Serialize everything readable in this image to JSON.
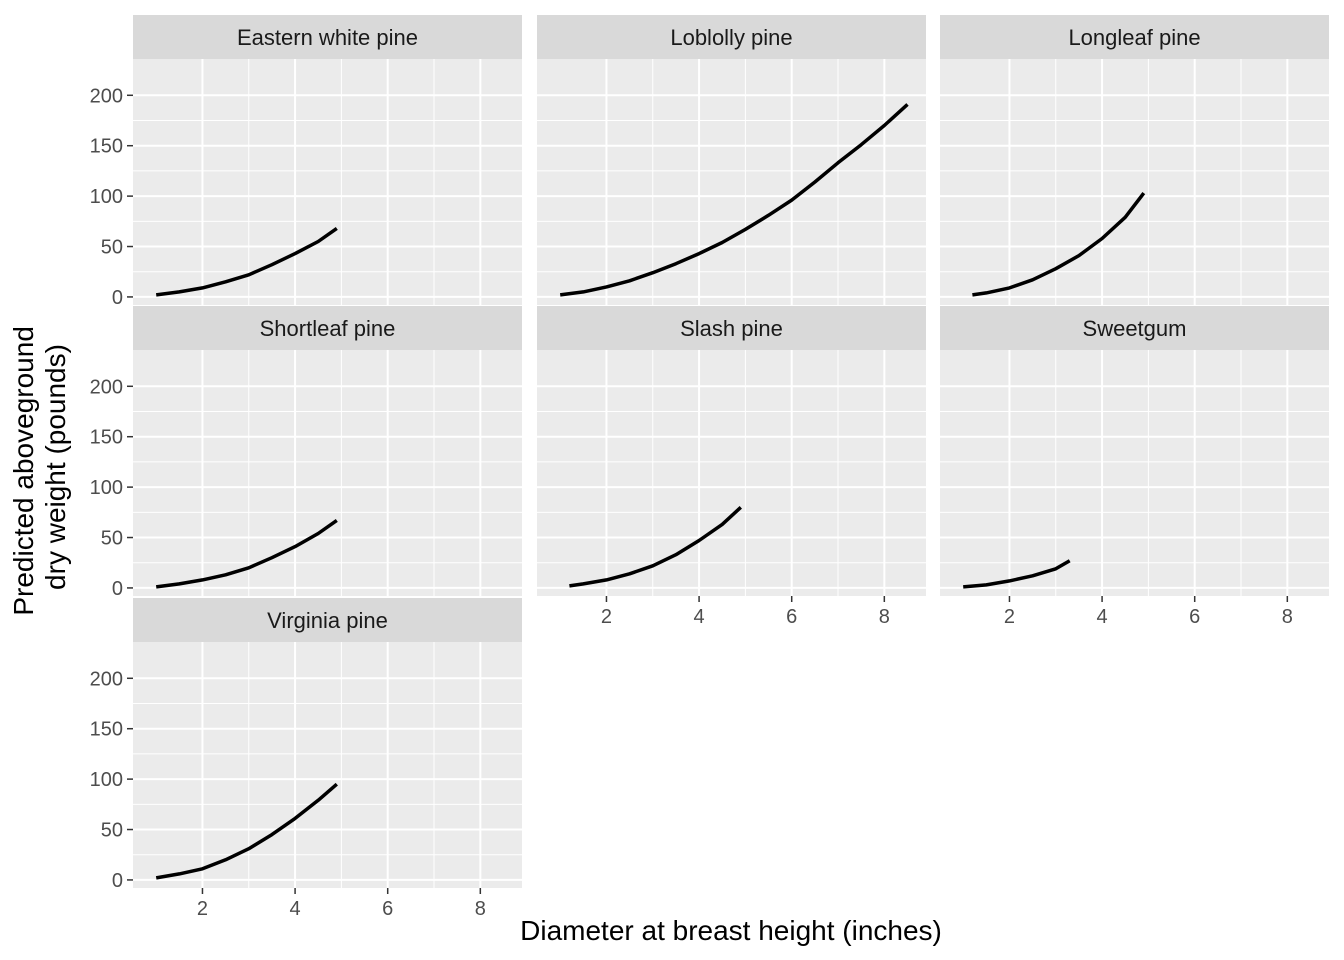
{
  "chart_data": {
    "type": "line",
    "layout": "facet_wrap",
    "xlabel": "Diameter at breast height (inches)",
    "ylabel_lines": [
      "Predicted aboveground",
      "dry weight (pounds)"
    ],
    "xlim": [
      0.5,
      8.9
    ],
    "ylim": [
      -8,
      236
    ],
    "x_ticks": [
      2,
      4,
      6,
      8
    ],
    "y_ticks": [
      0,
      50,
      100,
      150,
      200
    ],
    "grid": true,
    "line_color": "#000000",
    "panel_background": "#ebebeb",
    "strip_background": "#d9d9d9",
    "series": [
      {
        "name": "Eastern white pine",
        "x": [
          1.0,
          1.5,
          2.0,
          2.5,
          3.0,
          3.5,
          4.0,
          4.5,
          4.9
        ],
        "y": [
          2,
          5,
          9,
          15,
          22,
          32,
          43,
          55,
          68
        ]
      },
      {
        "name": "Loblolly pine",
        "x": [
          1.0,
          1.5,
          2.0,
          2.5,
          3.0,
          3.5,
          4.0,
          4.5,
          5.0,
          5.5,
          6.0,
          6.5,
          7.0,
          7.5,
          8.0,
          8.5
        ],
        "y": [
          2,
          5,
          10,
          16,
          24,
          33,
          43,
          54,
          67,
          81,
          96,
          114,
          133,
          151,
          170,
          191
        ]
      },
      {
        "name": "Longleaf pine",
        "x": [
          1.2,
          1.5,
          2.0,
          2.5,
          3.0,
          3.5,
          4.0,
          4.5,
          4.9
        ],
        "y": [
          2,
          4,
          9,
          17,
          28,
          41,
          58,
          79,
          103
        ]
      },
      {
        "name": "Shortleaf pine",
        "x": [
          1.0,
          1.5,
          2.0,
          2.5,
          3.0,
          3.5,
          4.0,
          4.5,
          4.9
        ],
        "y": [
          1,
          4,
          8,
          13,
          20,
          30,
          41,
          54,
          67
        ]
      },
      {
        "name": "Slash pine",
        "x": [
          1.2,
          1.5,
          2.0,
          2.5,
          3.0,
          3.5,
          4.0,
          4.5,
          4.9
        ],
        "y": [
          2,
          4,
          8,
          14,
          22,
          33,
          47,
          63,
          80
        ]
      },
      {
        "name": "Sweetgum",
        "x": [
          1.0,
          1.5,
          2.0,
          2.5,
          3.0,
          3.3
        ],
        "y": [
          1,
          3,
          7,
          12,
          19,
          27
        ]
      },
      {
        "name": "Virginia pine",
        "x": [
          1.0,
          1.5,
          2.0,
          2.5,
          3.0,
          3.5,
          4.0,
          4.5,
          4.9
        ],
        "y": [
          2,
          6,
          11,
          20,
          31,
          45,
          61,
          79,
          95
        ]
      }
    ]
  }
}
